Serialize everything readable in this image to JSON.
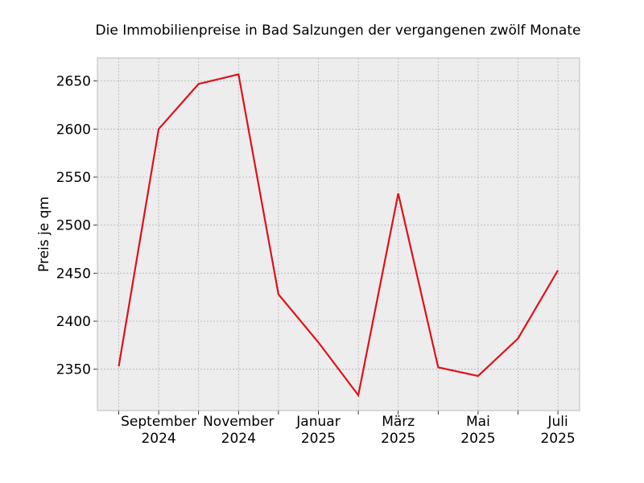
{
  "chart_data": {
    "type": "line",
    "title": "Die Immobilienpreise in Bad Salzungen der vergangenen zwölf Monate",
    "xlabel": "",
    "ylabel": "Preis je qm",
    "x": [
      "2024-08",
      "2024-09",
      "2024-10",
      "2024-11",
      "2024-12",
      "2025-01",
      "2025-02",
      "2025-03",
      "2025-04",
      "2025-05",
      "2025-06",
      "2025-07"
    ],
    "series": [
      {
        "values": [
          2353,
          2600,
          2647,
          2657,
          2428,
          2378,
          2323,
          2533,
          2352,
          2343,
          2382,
          2453
        ],
        "color": "#e0101a"
      }
    ],
    "ylim": [
      2307,
      2674
    ],
    "yticks": [
      2350,
      2400,
      2450,
      2500,
      2550,
      2600,
      2650
    ],
    "xtick_labels": [
      {
        "index": 1,
        "line1": "September",
        "line2": "2024"
      },
      {
        "index": 3,
        "line1": "November",
        "line2": "2024"
      },
      {
        "index": 5,
        "line1": "Januar",
        "line2": "2025"
      },
      {
        "index": 7,
        "line1": "März",
        "line2": "2025"
      },
      {
        "index": 9,
        "line1": "Mai",
        "line2": "2025"
      },
      {
        "index": 11,
        "line1": "Juli",
        "line2": "2025"
      }
    ],
    "grid": true,
    "background": "#ededed"
  }
}
